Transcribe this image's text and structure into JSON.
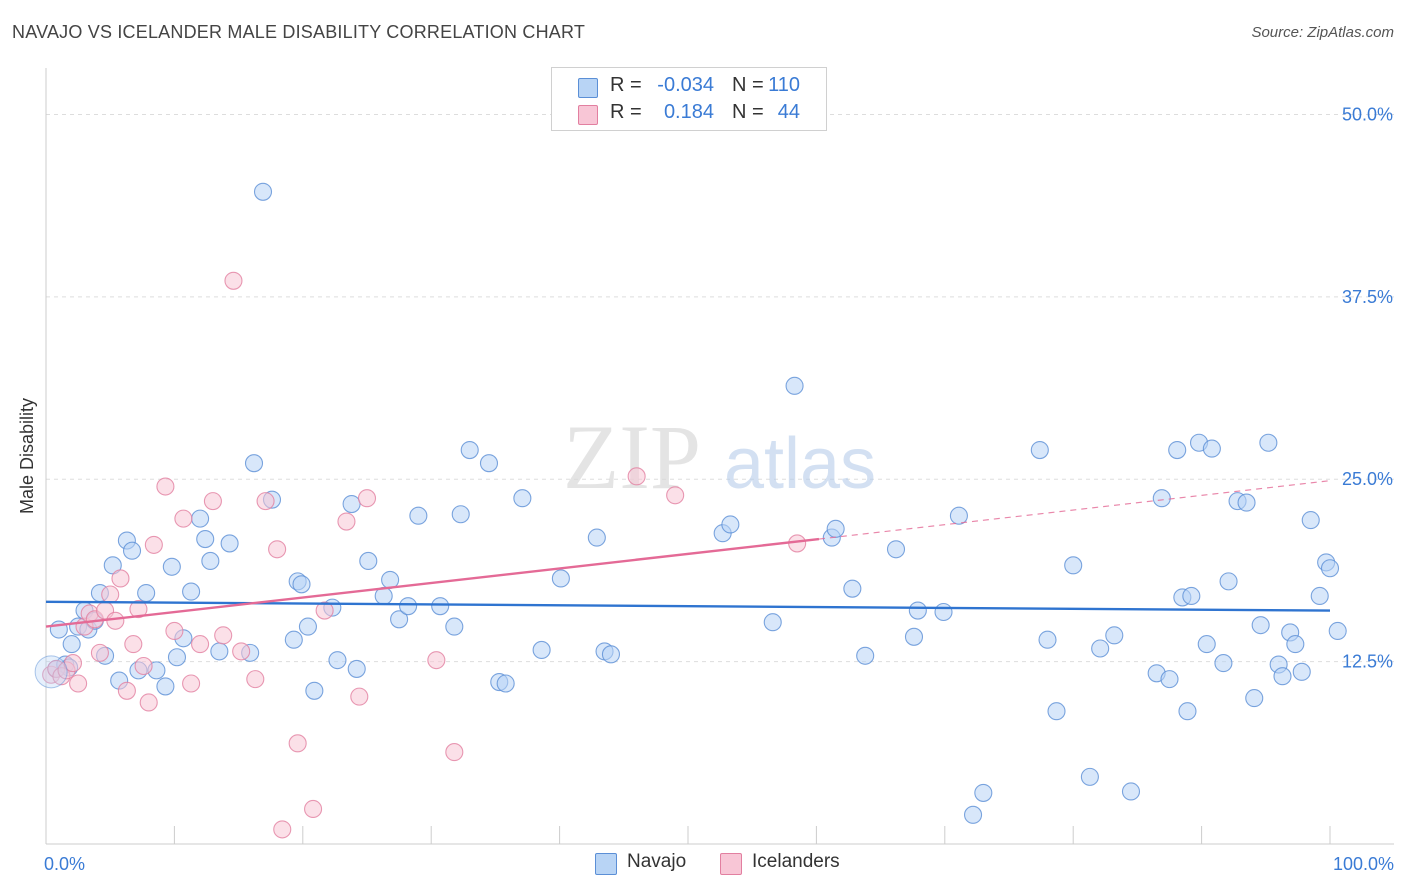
{
  "title": "NAVAJO VS ICELANDER MALE DISABILITY CORRELATION CHART",
  "source": "Source: ZipAtlas.com",
  "watermark": {
    "zip": "ZIP",
    "atlas": "atlas"
  },
  "colors": {
    "navajo_fill": "#b8d4f5",
    "navajo_stroke": "#5b8fd6",
    "navajo_line": "#2f74d0",
    "iceland_fill": "#f8c6d6",
    "iceland_stroke": "#e27fa0",
    "iceland_line": "#e46a96",
    "axis_text": "#3a7bd5",
    "grid": "#dddddd"
  },
  "legend": {
    "rows": [
      {
        "r_label": "R =",
        "r_value": "-0.034",
        "n_label": "N =",
        "n_value": "110"
      },
      {
        "r_label": "R =",
        "r_value": "0.184",
        "n_label": "N =",
        "n_value": "44"
      }
    ]
  },
  "bottom_legend": {
    "navajo": "Navajo",
    "icelanders": "Icelanders"
  },
  "chart_data": {
    "type": "scatter",
    "title": "NAVAJO VS ICELANDER MALE DISABILITY CORRELATION CHART",
    "xlabel": "",
    "ylabel": "Male Disability",
    "xlim": [
      0,
      100
    ],
    "ylim": [
      0,
      52.5
    ],
    "x_tick_labels": [
      "0.0%",
      "100.0%"
    ],
    "y_ticks": [
      12.5,
      25.0,
      37.5,
      50.0
    ],
    "y_tick_labels": [
      "12.5%",
      "25.0%",
      "37.5%",
      "50.0%"
    ],
    "grid": true,
    "series": [
      {
        "name": "Navajo",
        "R": -0.034,
        "N": 110,
        "trend": {
          "x0": 0,
          "y0": 16.6,
          "x1": 100,
          "y1": 16.0
        },
        "points": [
          [
            0.8,
            12.0
          ],
          [
            1.0,
            14.7
          ],
          [
            1.5,
            12.3
          ],
          [
            1.8,
            12.1
          ],
          [
            2.0,
            13.7
          ],
          [
            2.5,
            14.9
          ],
          [
            3.0,
            16.0
          ],
          [
            3.3,
            14.7
          ],
          [
            3.8,
            15.3
          ],
          [
            4.2,
            17.2
          ],
          [
            4.6,
            12.9
          ],
          [
            5.2,
            19.1
          ],
          [
            5.7,
            11.2
          ],
          [
            6.3,
            20.8
          ],
          [
            6.7,
            20.1
          ],
          [
            7.2,
            11.9
          ],
          [
            7.8,
            17.2
          ],
          [
            8.6,
            11.9
          ],
          [
            9.3,
            10.8
          ],
          [
            9.8,
            19.0
          ],
          [
            10.2,
            12.8
          ],
          [
            10.7,
            14.1
          ],
          [
            11.3,
            17.3
          ],
          [
            12.0,
            22.3
          ],
          [
            12.4,
            20.9
          ],
          [
            12.8,
            19.4
          ],
          [
            13.5,
            13.2
          ],
          [
            14.3,
            20.6
          ],
          [
            15.9,
            13.1
          ],
          [
            16.2,
            26.1
          ],
          [
            16.9,
            44.7
          ],
          [
            17.6,
            23.6
          ],
          [
            19.3,
            14.0
          ],
          [
            19.6,
            18.0
          ],
          [
            19.9,
            17.8
          ],
          [
            20.4,
            14.9
          ],
          [
            20.9,
            10.5
          ],
          [
            22.3,
            16.2
          ],
          [
            22.7,
            12.6
          ],
          [
            23.8,
            23.3
          ],
          [
            24.2,
            12.0
          ],
          [
            25.1,
            19.4
          ],
          [
            26.3,
            17.0
          ],
          [
            26.8,
            18.1
          ],
          [
            27.5,
            15.4
          ],
          [
            28.2,
            16.3
          ],
          [
            29.0,
            22.5
          ],
          [
            30.7,
            16.3
          ],
          [
            31.8,
            14.9
          ],
          [
            32.3,
            22.6
          ],
          [
            33.0,
            27.0
          ],
          [
            34.5,
            26.1
          ],
          [
            35.3,
            11.1
          ],
          [
            35.8,
            11.0
          ],
          [
            37.1,
            23.7
          ],
          [
            38.6,
            13.3
          ],
          [
            40.1,
            18.2
          ],
          [
            42.9,
            21.0
          ],
          [
            43.5,
            13.2
          ],
          [
            44.0,
            13.0
          ],
          [
            52.7,
            21.3
          ],
          [
            53.3,
            21.9
          ],
          [
            56.6,
            15.2
          ],
          [
            58.3,
            31.4
          ],
          [
            61.2,
            21.0
          ],
          [
            61.5,
            21.6
          ],
          [
            62.8,
            17.5
          ],
          [
            63.8,
            12.9
          ],
          [
            66.2,
            20.2
          ],
          [
            67.6,
            14.2
          ],
          [
            67.9,
            16.0
          ],
          [
            69.9,
            15.9
          ],
          [
            71.1,
            22.5
          ],
          [
            72.2,
            2.0
          ],
          [
            73.0,
            3.5
          ],
          [
            77.4,
            27.0
          ],
          [
            78.0,
            14.0
          ],
          [
            78.7,
            9.1
          ],
          [
            80.0,
            19.1
          ],
          [
            81.3,
            4.6
          ],
          [
            82.1,
            13.4
          ],
          [
            83.2,
            14.3
          ],
          [
            84.5,
            3.6
          ],
          [
            86.5,
            11.7
          ],
          [
            86.9,
            23.7
          ],
          [
            87.5,
            11.3
          ],
          [
            88.1,
            27.0
          ],
          [
            88.5,
            16.9
          ],
          [
            88.9,
            9.1
          ],
          [
            89.2,
            17.0
          ],
          [
            89.8,
            27.5
          ],
          [
            90.4,
            13.7
          ],
          [
            90.8,
            27.1
          ],
          [
            91.7,
            12.4
          ],
          [
            92.1,
            18.0
          ],
          [
            92.8,
            23.5
          ],
          [
            93.5,
            23.4
          ],
          [
            94.1,
            10.0
          ],
          [
            94.6,
            15.0
          ],
          [
            95.2,
            27.5
          ],
          [
            96.0,
            12.3
          ],
          [
            96.3,
            11.5
          ],
          [
            96.9,
            14.5
          ],
          [
            97.3,
            13.7
          ],
          [
            97.8,
            11.8
          ],
          [
            98.5,
            22.2
          ],
          [
            99.2,
            17.0
          ],
          [
            99.7,
            19.3
          ],
          [
            100.0,
            18.9
          ],
          [
            100.6,
            14.6
          ]
        ]
      },
      {
        "name": "Icelanders",
        "R": 0.184,
        "N": 44,
        "trend": {
          "x0": 0,
          "y0": 14.9,
          "x1": 60.2,
          "y1": 20.9
        },
        "trend_dashed": {
          "x0": 60.2,
          "y0": 20.9,
          "x1": 100,
          "y1": 24.9
        },
        "points": [
          [
            0.4,
            11.6
          ],
          [
            0.8,
            12.0
          ],
          [
            1.2,
            11.5
          ],
          [
            1.6,
            11.9
          ],
          [
            2.1,
            12.4
          ],
          [
            2.5,
            11.0
          ],
          [
            3.0,
            14.9
          ],
          [
            3.4,
            15.8
          ],
          [
            3.8,
            15.4
          ],
          [
            4.2,
            13.1
          ],
          [
            4.6,
            16.0
          ],
          [
            5.0,
            17.1
          ],
          [
            5.4,
            15.3
          ],
          [
            5.8,
            18.2
          ],
          [
            6.3,
            10.5
          ],
          [
            6.8,
            13.7
          ],
          [
            7.2,
            16.1
          ],
          [
            7.6,
            12.2
          ],
          [
            8.0,
            9.7
          ],
          [
            8.4,
            20.5
          ],
          [
            9.3,
            24.5
          ],
          [
            10.0,
            14.6
          ],
          [
            10.7,
            22.3
          ],
          [
            11.3,
            11.0
          ],
          [
            12.0,
            13.7
          ],
          [
            13.0,
            23.5
          ],
          [
            13.8,
            14.3
          ],
          [
            14.6,
            38.6
          ],
          [
            15.2,
            13.2
          ],
          [
            16.3,
            11.3
          ],
          [
            17.1,
            23.5
          ],
          [
            18.0,
            20.2
          ],
          [
            18.4,
            1.0
          ],
          [
            19.6,
            6.9
          ],
          [
            20.8,
            2.4
          ],
          [
            21.7,
            16.0
          ],
          [
            23.4,
            22.1
          ],
          [
            24.4,
            10.1
          ],
          [
            25.0,
            23.7
          ],
          [
            30.4,
            12.6
          ],
          [
            31.8,
            6.3
          ],
          [
            46.0,
            25.2
          ],
          [
            49.0,
            23.9
          ],
          [
            58.5,
            20.6
          ]
        ]
      }
    ]
  }
}
